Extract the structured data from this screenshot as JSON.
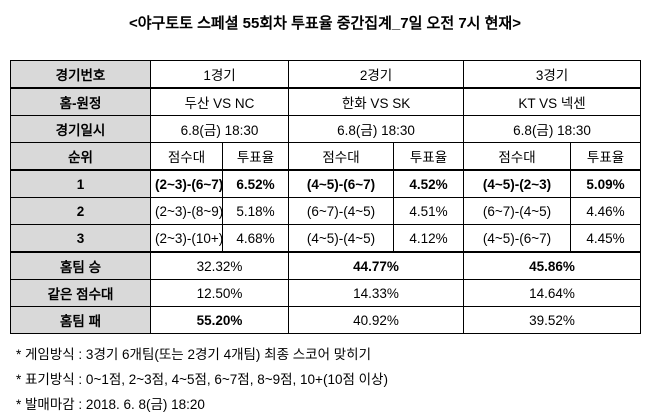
{
  "title": "<야구토토 스페셜 55회차 투표율 중간집계_7일 오전 7시 현재>",
  "table": {
    "header": [
      "경기번호",
      "1경기",
      "2경기",
      "3경기"
    ],
    "matchup": [
      "홈-원정",
      "두산 VS NC",
      "한화 VS SK",
      "KT VS 넥센"
    ],
    "datetime": [
      "경기일시",
      "6.8(금) 18:30",
      "6.8(금) 18:30",
      "6.8(금) 18:30"
    ],
    "subheader": [
      "순위",
      "점수대",
      "투표율",
      "점수대",
      "투표율",
      "점수대",
      "투표율"
    ],
    "ranks": [
      [
        "1",
        "(2~3)-(6~7)",
        "6.52%",
        "(4~5)-(6~7)",
        "4.52%",
        "(4~5)-(2~3)",
        "5.09%"
      ],
      [
        "2",
        "(2~3)-(8~9)",
        "5.18%",
        "(6~7)-(4~5)",
        "4.51%",
        "(6~7)-(4~5)",
        "4.46%"
      ],
      [
        "3",
        "(2~3)-(10+)",
        "4.68%",
        "(4~5)-(4~5)",
        "4.12%",
        "(4~5)-(6~7)",
        "4.45%"
      ]
    ],
    "outcomes": [
      [
        "홈팀 승",
        "32.32%",
        "44.77%",
        "45.86%"
      ],
      [
        "같은 점수대",
        "12.50%",
        "14.33%",
        "14.64%"
      ],
      [
        "홈팀 패",
        "55.20%",
        "40.92%",
        "39.52%"
      ]
    ]
  },
  "notes": [
    "* 게임방식 : 3경기 6개팀(또는 2경기 4개팀) 최종 스코어 맞히기",
    "* 표기방식 : 0~1점, 2~3점, 4~5점, 6~7점, 8~9점, 10+(10점 이상)",
    "* 발매마감 : 2018. 6. 8(금) 18:20"
  ]
}
